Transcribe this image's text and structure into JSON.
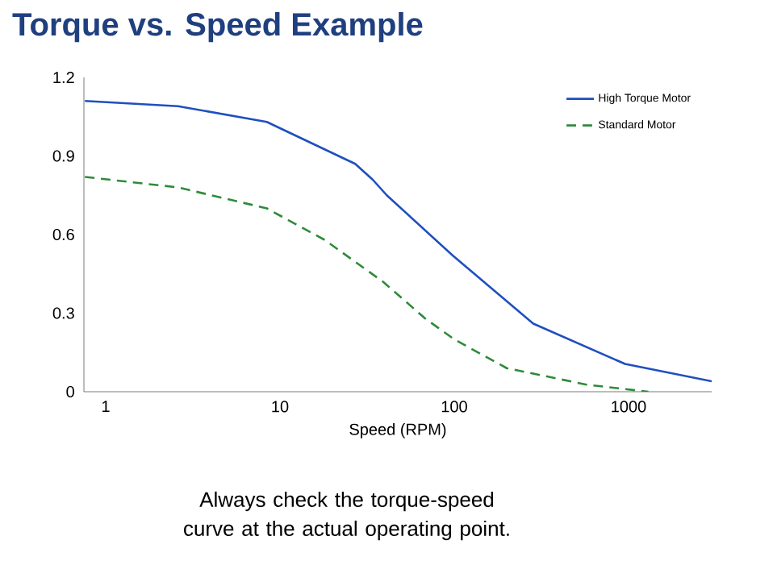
{
  "chart_data": {
    "type": "line",
    "title": "Torque vs. Speed Example",
    "xlabel": "Speed (RPM)",
    "annotations": [
      "Always check the torque-speed curve at the actual operating point."
    ],
    "log": "x",
    "xlim": [
      0.75,
      3000
    ],
    "xticks": [
      1,
      10,
      100,
      1000
    ],
    "ylim": [
      0,
      1.2
    ],
    "yticks": [
      0,
      0.3,
      0.6,
      0.9,
      1.2
    ],
    "legend": "top right",
    "marker": "none",
    "series": [
      {
        "name": "High Torque Motor",
        "color": "#1f4fbf",
        "line_style": "solid",
        "x": [
          0.76,
          2.6,
          8.4,
          27,
          34,
          41,
          98,
          284,
          955,
          3000
        ],
        "values": [
          1.11,
          1.09,
          1.03,
          0.87,
          0.81,
          0.75,
          0.52,
          0.26,
          0.106,
          0.04
        ]
      },
      {
        "name": "Standard Motor",
        "color": "#2e8b3a",
        "line_style": "dashed",
        "x": [
          0.76,
          2.6,
          8.4,
          18,
          39,
          68,
          100,
          200,
          575,
          1300
        ],
        "values": [
          0.82,
          0.78,
          0.7,
          0.58,
          0.42,
          0.28,
          0.2,
          0.09,
          0.027,
          0
        ]
      }
    ]
  }
}
